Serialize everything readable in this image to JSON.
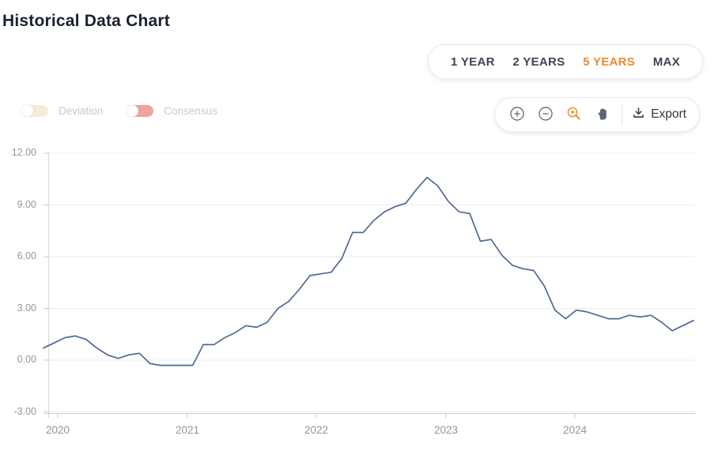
{
  "page": {
    "title": "Historical Data Chart"
  },
  "range_selector": {
    "options": [
      {
        "label": "1 YEAR",
        "active": false
      },
      {
        "label": "2 YEARS",
        "active": false
      },
      {
        "label": "5 YEARS",
        "active": true
      },
      {
        "label": "MAX",
        "active": false
      }
    ],
    "active_color": "#ee8a2a"
  },
  "toggles": [
    {
      "label": "Deviation",
      "state": "off",
      "track_color": "#f7ead8"
    },
    {
      "label": "Consensus",
      "state": "off",
      "track_color": "#efa49d"
    }
  ],
  "toolbar": {
    "icons": [
      "zoom-in",
      "zoom-out",
      "zoom-selection",
      "pan"
    ],
    "active_icon": "zoom-selection",
    "active_icon_color": "#e8922e",
    "icon_color": "#5b6472",
    "export_label": "Export"
  },
  "chart_data": {
    "type": "line",
    "title": "Historical Data Chart",
    "frequency": "monthly",
    "x_start": "2019-10",
    "x_end": "2024-11",
    "series": [
      {
        "name": "value",
        "color": "#4e6a96",
        "values": [
          0.7,
          1.0,
          1.3,
          1.4,
          1.2,
          0.7,
          0.3,
          0.1,
          0.3,
          0.4,
          -0.2,
          -0.3,
          -0.3,
          -0.3,
          -0.3,
          0.9,
          0.9,
          1.3,
          1.6,
          2.0,
          1.9,
          2.2,
          3.0,
          3.4,
          4.1,
          4.9,
          5.0,
          5.1,
          5.9,
          7.4,
          7.4,
          8.1,
          8.6,
          8.9,
          9.1,
          9.9,
          10.6,
          10.1,
          9.2,
          8.6,
          8.5,
          6.9,
          7.0,
          6.1,
          5.5,
          5.3,
          5.2,
          4.3,
          2.9,
          2.4,
          2.9,
          2.8,
          2.6,
          2.4,
          2.4,
          2.6,
          2.5,
          2.6,
          2.2,
          1.7,
          2.0,
          2.3
        ]
      }
    ],
    "x_tick_labels": [
      "2020",
      "2021",
      "2022",
      "2023",
      "2024"
    ],
    "y_ticks": [
      12,
      9,
      6,
      3,
      0,
      -3
    ],
    "y_tick_labels": [
      "12.00",
      "9.00",
      "6.00",
      "3.00",
      "0.00",
      "-3.00"
    ],
    "ylim": [
      -3.2,
      12.3
    ],
    "grid": "horizontal",
    "legend": "none"
  }
}
